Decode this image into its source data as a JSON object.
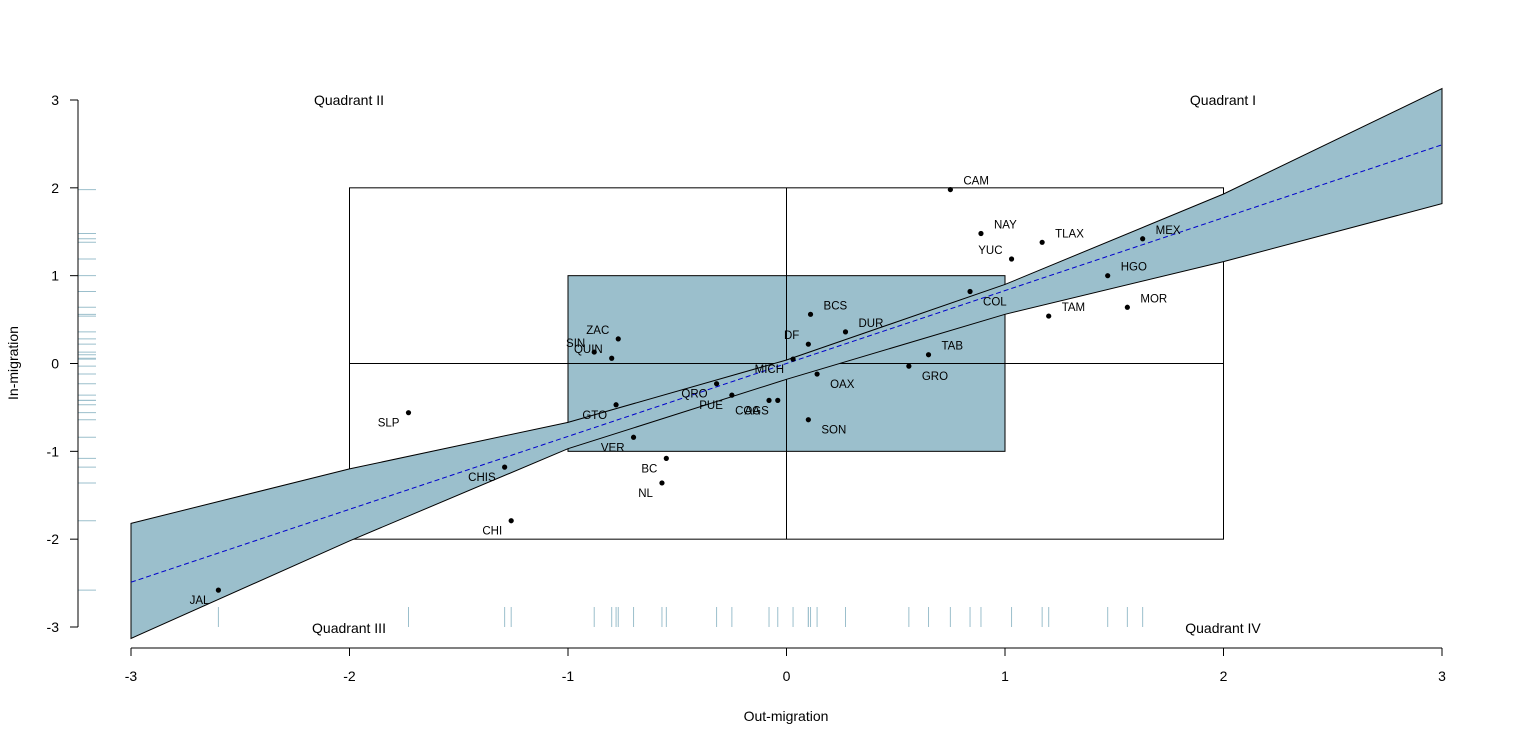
{
  "chart_data": {
    "type": "scatter",
    "xlabel": "Out-migration",
    "ylabel": "In-migration",
    "xlim": [
      -3,
      3
    ],
    "ylim": [
      -3,
      3
    ],
    "xticks": [
      -3,
      -2,
      -1,
      0,
      1,
      2,
      3
    ],
    "yticks": [
      -3,
      -2,
      -1,
      0,
      1,
      2,
      3
    ],
    "grid": false,
    "quadrants": {
      "q1": "Quadrant I",
      "q2": "Quadrant II",
      "q3": "Quadrant III",
      "q4": "Quadrant IV"
    },
    "band_color": "#9bbfcc",
    "trend_color": "#0000cc",
    "outer_box": {
      "x": [
        -2,
        2
      ],
      "y": [
        -2,
        2
      ]
    },
    "inner_box": {
      "x": [
        -1,
        1
      ],
      "y": [
        -1,
        1
      ]
    },
    "trend": {
      "slope": 0.83,
      "intercept": 0.0
    },
    "band": {
      "x": [
        -3,
        -2,
        -1,
        0,
        1,
        2,
        3
      ],
      "upper": [
        -1.82,
        -1.2,
        -0.67,
        0.04,
        0.9,
        1.93,
        3.13
      ],
      "lower": [
        -3.13,
        -2.02,
        -0.97,
        -0.18,
        0.56,
        1.16,
        1.82
      ]
    },
    "points": [
      {
        "label": "CAM",
        "x": 0.75,
        "y": 1.98
      },
      {
        "label": "NAY",
        "x": 0.89,
        "y": 1.48
      },
      {
        "label": "TLAX",
        "x": 1.17,
        "y": 1.38
      },
      {
        "label": "YUC",
        "x": 1.03,
        "y": 1.19
      },
      {
        "label": "MEX",
        "x": 1.63,
        "y": 1.42
      },
      {
        "label": "HGO",
        "x": 1.47,
        "y": 1.0
      },
      {
        "label": "COL",
        "x": 0.84,
        "y": 0.82
      },
      {
        "label": "MOR",
        "x": 1.56,
        "y": 0.64
      },
      {
        "label": "TAM",
        "x": 1.2,
        "y": 0.54
      },
      {
        "label": "BCS",
        "x": 0.11,
        "y": 0.56
      },
      {
        "label": "DUR",
        "x": 0.27,
        "y": 0.36
      },
      {
        "label": "DF",
        "x": 0.1,
        "y": 0.22
      },
      {
        "label": "MICH",
        "x": 0.03,
        "y": 0.05
      },
      {
        "label": "TAB",
        "x": 0.65,
        "y": 0.1
      },
      {
        "label": "GRO",
        "x": 0.56,
        "y": -0.03
      },
      {
        "label": "OAX",
        "x": 0.14,
        "y": -0.12
      },
      {
        "label": "SON",
        "x": 0.1,
        "y": -0.64
      },
      {
        "label": "COA",
        "x": -0.08,
        "y": -0.42
      },
      {
        "label": "AGS",
        "x": -0.04,
        "y": -0.42
      },
      {
        "label": "PUE",
        "x": -0.25,
        "y": -0.36
      },
      {
        "label": "QRO",
        "x": -0.32,
        "y": -0.23
      },
      {
        "label": "ZAC",
        "x": -0.77,
        "y": 0.28
      },
      {
        "label": "SIN",
        "x": -0.88,
        "y": 0.13
      },
      {
        "label": "QUIN",
        "x": -0.8,
        "y": 0.06
      },
      {
        "label": "GTO",
        "x": -0.78,
        "y": -0.47
      },
      {
        "label": "VER",
        "x": -0.7,
        "y": -0.84
      },
      {
        "label": "BC",
        "x": -0.55,
        "y": -1.08
      },
      {
        "label": "NL",
        "x": -0.57,
        "y": -1.36
      },
      {
        "label": "SLP",
        "x": -1.73,
        "y": -0.56
      },
      {
        "label": "CHIS",
        "x": -1.29,
        "y": -1.18
      },
      {
        "label": "CHI",
        "x": -1.26,
        "y": -1.79
      },
      {
        "label": "JAL",
        "x": -2.6,
        "y": -2.58
      }
    ]
  }
}
